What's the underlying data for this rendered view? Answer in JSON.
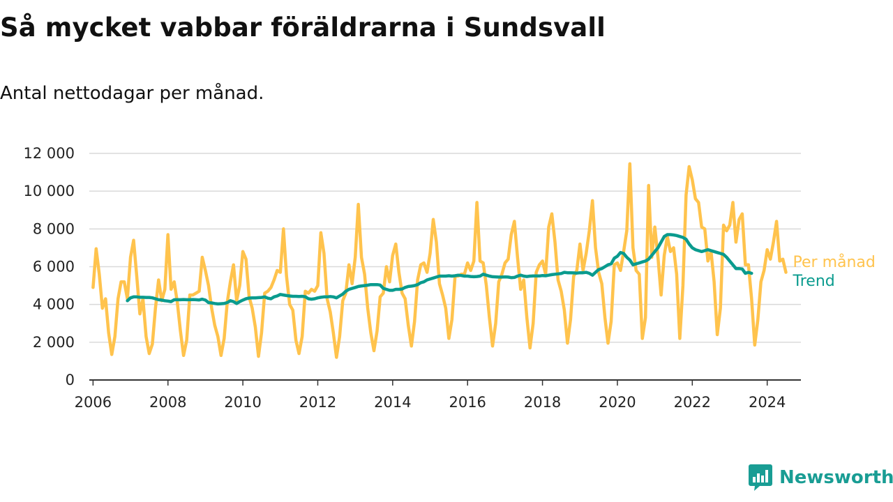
{
  "header": {
    "title": "Så mycket vabbar föräldrarna i Sundsvall",
    "subtitle": "Antal nettodagar per månad."
  },
  "brand": {
    "name": "Newsworthy",
    "icon": "bar-chart-speech-bubble-icon",
    "color": "#199d94"
  },
  "chart_data": {
    "type": "line",
    "title": "Så mycket vabbar föräldrarna i Sundsvall",
    "subtitle": "Antal nettodagar per månad.",
    "xlabel": "",
    "ylabel": "",
    "xlim": [
      2005.9,
      2024.9
    ],
    "ylim": [
      0,
      12000
    ],
    "x_ticks": [
      2006,
      2008,
      2010,
      2012,
      2014,
      2016,
      2018,
      2020,
      2022,
      2024
    ],
    "y_ticks": [
      0,
      2000,
      4000,
      6000,
      8000,
      10000,
      12000
    ],
    "y_tick_labels": [
      "0",
      "2 000",
      "4 000",
      "6 000",
      "8 000",
      "10 000",
      "12 000"
    ],
    "grid": "horizontal",
    "legend": "inline-right",
    "series": [
      {
        "name": "Per månad",
        "color": "#ffc34d",
        "start": "2006-01",
        "values": [
          4900,
          6950,
          5600,
          3800,
          4300,
          2500,
          1350,
          2300,
          4300,
          5200,
          5200,
          4300,
          6500,
          7400,
          5500,
          3500,
          4300,
          2300,
          1400,
          1900,
          3800,
          5300,
          4200,
          4800,
          7700,
          4800,
          5200,
          4100,
          2600,
          1300,
          2100,
          4500,
          4500,
          4600,
          4700,
          6500,
          5800,
          5000,
          3800,
          2900,
          2300,
          1300,
          2200,
          4100,
          5200,
          6100,
          4200,
          5000,
          6800,
          6400,
          4400,
          3800,
          2800,
          1250,
          2500,
          4600,
          4700,
          4900,
          5300,
          5800,
          5700,
          8000,
          5500,
          4000,
          3700,
          2100,
          1400,
          2300,
          4700,
          4600,
          4800,
          4700,
          5000,
          7800,
          6700,
          4300,
          3600,
          2500,
          1200,
          2300,
          4200,
          4600,
          6100,
          5100,
          6500,
          9300,
          6500,
          5600,
          3800,
          2500,
          1550,
          2600,
          4400,
          4600,
          6000,
          5200,
          6600,
          7200,
          5700,
          4600,
          4300,
          2900,
          1800,
          3100,
          5300,
          6100,
          6200,
          5700,
          6700,
          8500,
          7300,
          5100,
          4500,
          3800,
          2200,
          3200,
          5500,
          5500,
          5600,
          5600,
          6200,
          5800,
          6300,
          9400,
          6300,
          6200,
          5000,
          3300,
          1800,
          3000,
          5200,
          5600,
          6200,
          6400,
          7700,
          8400,
          6500,
          4800,
          5300,
          3300,
          1700,
          3000,
          5700,
          6100,
          6300,
          5600,
          8100,
          8800,
          7300,
          5300,
          4700,
          3700,
          1950,
          3200,
          5500,
          5800,
          7200,
          5800,
          6700,
          7900,
          9500,
          7000,
          5700,
          5100,
          3300,
          1950,
          3100,
          6100,
          6200,
          5800,
          6800,
          7900,
          11450,
          7000,
          5800,
          5600,
          2200,
          3300,
          10300,
          6500,
          8100,
          6500,
          4500,
          6600,
          7600,
          6800,
          7000,
          5600,
          2200,
          5000,
          9800,
          11300,
          10600,
          9600,
          9400,
          8100,
          8000,
          6300,
          6800,
          5200,
          2400,
          3800,
          8200,
          7900,
          8200,
          9400,
          7300,
          8500,
          8800,
          6100,
          6100,
          4300,
          1850,
          3200,
          5200,
          5800,
          6900,
          6400,
          7300,
          8400,
          6300,
          6400,
          5700
        ]
      },
      {
        "name": "Trend",
        "color": "#0a9b8e",
        "start": "2006-12",
        "values": [
          4200,
          4350,
          4400,
          4400,
          4380,
          4380,
          4370,
          4370,
          4350,
          4300,
          4250,
          4230,
          4200,
          4180,
          4150,
          4250,
          4250,
          4250,
          4260,
          4250,
          4250,
          4260,
          4250,
          4240,
          4280,
          4230,
          4100,
          4080,
          4050,
          4030,
          4040,
          4050,
          4100,
          4200,
          4150,
          4050,
          4150,
          4230,
          4300,
          4340,
          4350,
          4350,
          4360,
          4370,
          4400,
          4330,
          4300,
          4400,
          4450,
          4530,
          4500,
          4470,
          4450,
          4430,
          4430,
          4420,
          4430,
          4410,
          4300,
          4280,
          4300,
          4350,
          4380,
          4400,
          4400,
          4420,
          4400,
          4350,
          4450,
          4550,
          4700,
          4800,
          4850,
          4900,
          4950,
          4980,
          5000,
          5020,
          5050,
          5050,
          5050,
          5030,
          4850,
          4800,
          4750,
          4750,
          4800,
          4800,
          4820,
          4900,
          4950,
          4970,
          5000,
          5050,
          5150,
          5200,
          5300,
          5350,
          5400,
          5450,
          5500,
          5500,
          5500,
          5520,
          5500,
          5520,
          5550,
          5530,
          5500,
          5500,
          5480,
          5470,
          5480,
          5500,
          5600,
          5550,
          5500,
          5470,
          5460,
          5450,
          5450,
          5460,
          5450,
          5420,
          5430,
          5500,
          5550,
          5500,
          5480,
          5500,
          5510,
          5510,
          5510,
          5530,
          5520,
          5550,
          5580,
          5600,
          5620,
          5640,
          5700,
          5680,
          5680,
          5670,
          5660,
          5680,
          5680,
          5700,
          5650,
          5550,
          5700,
          5850,
          5900,
          6000,
          6100,
          6150,
          6450,
          6550,
          6750,
          6700,
          6500,
          6350,
          6100,
          6150,
          6200,
          6250,
          6300,
          6400,
          6600,
          6800,
          7000,
          7300,
          7600,
          7700,
          7700,
          7680,
          7650,
          7600,
          7550,
          7450,
          7200,
          7000,
          6900,
          6850,
          6800,
          6850,
          6900,
          6850,
          6800,
          6750,
          6700,
          6650,
          6500,
          6300,
          6100,
          5900,
          5900,
          5880,
          5650,
          5700,
          5650
        ]
      }
    ]
  }
}
